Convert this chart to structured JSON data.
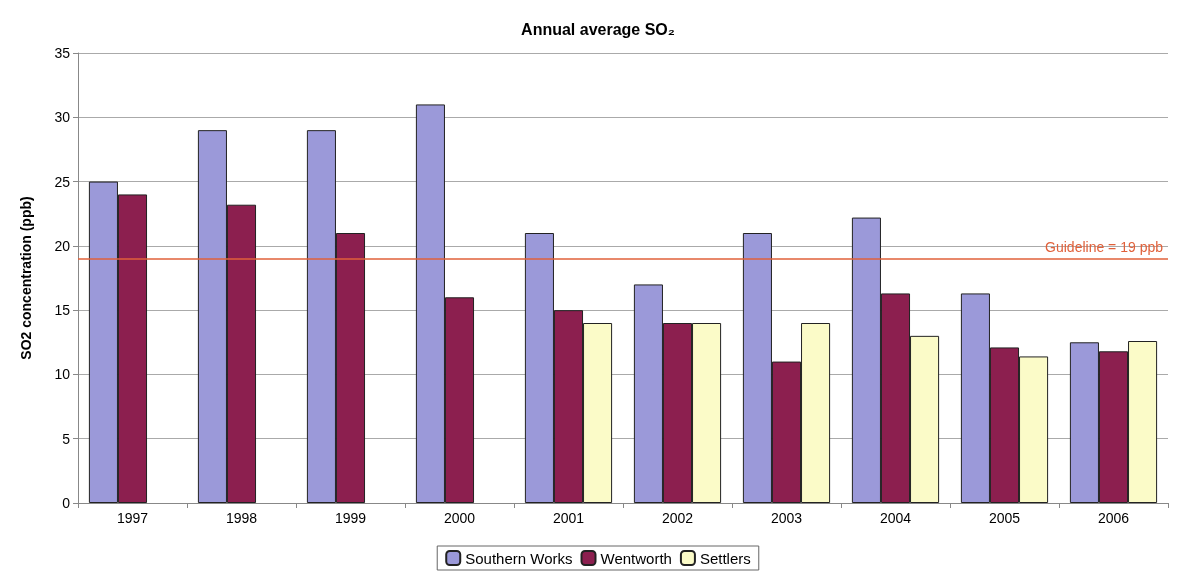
{
  "chart_data": {
    "type": "bar",
    "title": "Annual average SO₂",
    "ylabel": "SO2 concentration (ppb)",
    "categories": [
      "1997",
      "1998",
      "1999",
      "2000",
      "2001",
      "2002",
      "2003",
      "2004",
      "2005",
      "2006"
    ],
    "series": [
      {
        "name": "Southern Works",
        "color": "#9b99d9",
        "values": [
          25,
          29,
          29,
          31,
          21,
          17,
          21,
          22.2,
          16.3,
          12.5
        ]
      },
      {
        "name": "Wentworth",
        "color": "#8c1f4f",
        "values": [
          24,
          23.2,
          21,
          16,
          15,
          14,
          11,
          16.3,
          12.1,
          11.8
        ]
      },
      {
        "name": "Settlers",
        "color": "#fbfbc8",
        "values": [
          null,
          null,
          null,
          null,
          14,
          14,
          14,
          13,
          11.4,
          12.6
        ]
      }
    ],
    "ylim": [
      0,
      35
    ],
    "yticks": [
      0,
      5,
      10,
      15,
      20,
      25,
      30,
      35
    ],
    "grid": "y",
    "legend": "bottom",
    "ref_lines": [
      {
        "axis": "y",
        "value": 19,
        "label": "Guideline = 19 ppb",
        "color": "#e0603a"
      }
    ]
  }
}
